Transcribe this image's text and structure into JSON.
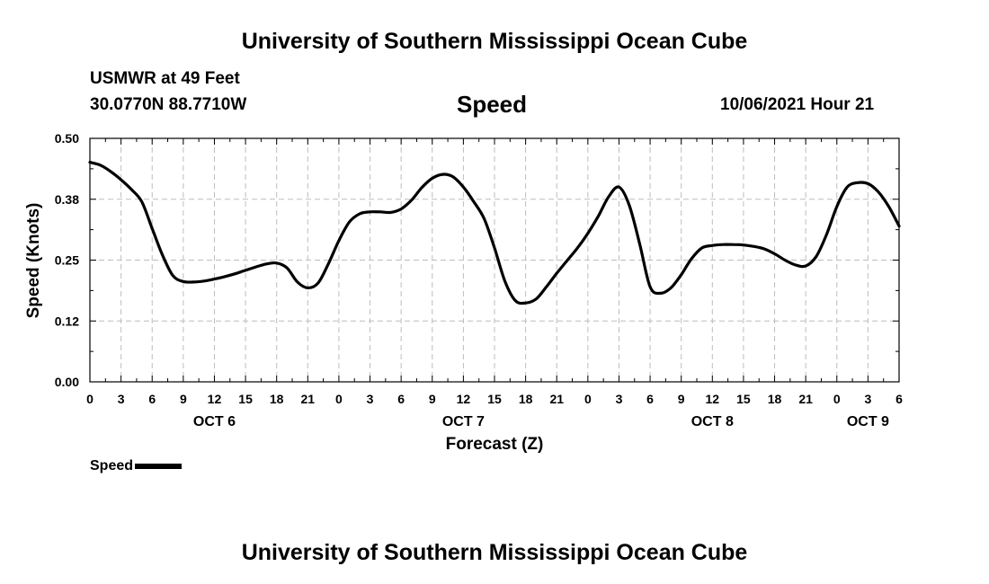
{
  "page": {
    "top_title": "University of Southern Mississippi Ocean Cube",
    "bottom_title": "University of Southern Mississippi Ocean Cube",
    "station_line": "USMWR at 49 Feet",
    "coords_line": "30.0770N  88.7710W",
    "datetime_line": "10/06/2021 Hour 21"
  },
  "chart_data": {
    "type": "line",
    "title": "Speed",
    "xlabel": "Forecast (Z)",
    "ylabel": "Speed (Knots)",
    "ylim": [
      0,
      0.5
    ],
    "xlim": [
      0,
      78
    ],
    "y_ticks": [
      "0.00",
      "0.12",
      "0.25",
      "0.38",
      "0.50"
    ],
    "y_tick_values": [
      0,
      0.125,
      0.25,
      0.375,
      0.5
    ],
    "x_ticks": [
      "0",
      "3",
      "6",
      "9",
      "12",
      "15",
      "18",
      "21",
      "0",
      "3",
      "6",
      "9",
      "12",
      "15",
      "18",
      "21",
      "0",
      "3",
      "6",
      "9",
      "12",
      "15",
      "18",
      "21",
      "0",
      "3",
      "6"
    ],
    "date_labels": [
      {
        "label": "OCT 6",
        "x": 12
      },
      {
        "label": "OCT 7",
        "x": 36
      },
      {
        "label": "OCT 8",
        "x": 60
      },
      {
        "label": "OCT 9",
        "x": 75
      }
    ],
    "grid": true,
    "legend": "bottom-left",
    "series": [
      {
        "name": "Speed",
        "color": "#000000",
        "x": [
          0,
          1,
          2,
          3,
          4,
          5,
          6,
          7,
          8,
          9,
          10,
          11,
          12,
          13,
          14,
          15,
          16,
          17,
          18,
          19,
          20,
          21,
          22,
          23,
          24,
          25,
          26,
          27,
          28,
          29,
          30,
          31,
          32,
          33,
          34,
          35,
          36,
          37,
          38,
          39,
          40,
          41,
          42,
          43,
          44,
          45,
          46,
          47,
          48,
          49,
          50,
          51,
          52,
          53,
          54,
          55,
          56,
          57,
          58,
          59,
          60,
          61,
          62,
          63,
          64,
          65,
          66,
          67,
          68,
          69,
          70,
          71,
          72,
          73,
          74,
          75,
          76,
          77,
          78
        ],
        "y": [
          0.451,
          0.445,
          0.432,
          0.415,
          0.395,
          0.37,
          0.315,
          0.26,
          0.218,
          0.206,
          0.205,
          0.207,
          0.211,
          0.216,
          0.222,
          0.229,
          0.236,
          0.242,
          0.244,
          0.234,
          0.205,
          0.193,
          0.203,
          0.243,
          0.29,
          0.328,
          0.345,
          0.349,
          0.349,
          0.348,
          0.355,
          0.373,
          0.399,
          0.418,
          0.426,
          0.421,
          0.4,
          0.37,
          0.335,
          0.275,
          0.207,
          0.167,
          0.162,
          0.17,
          0.195,
          0.223,
          0.249,
          0.275,
          0.305,
          0.34,
          0.38,
          0.4,
          0.362,
          0.283,
          0.195,
          0.182,
          0.193,
          0.22,
          0.253,
          0.275,
          0.28,
          0.282,
          0.282,
          0.281,
          0.278,
          0.273,
          0.263,
          0.25,
          0.24,
          0.238,
          0.257,
          0.302,
          0.36,
          0.4,
          0.409,
          0.407,
          0.39,
          0.36,
          0.32
        ]
      }
    ]
  }
}
